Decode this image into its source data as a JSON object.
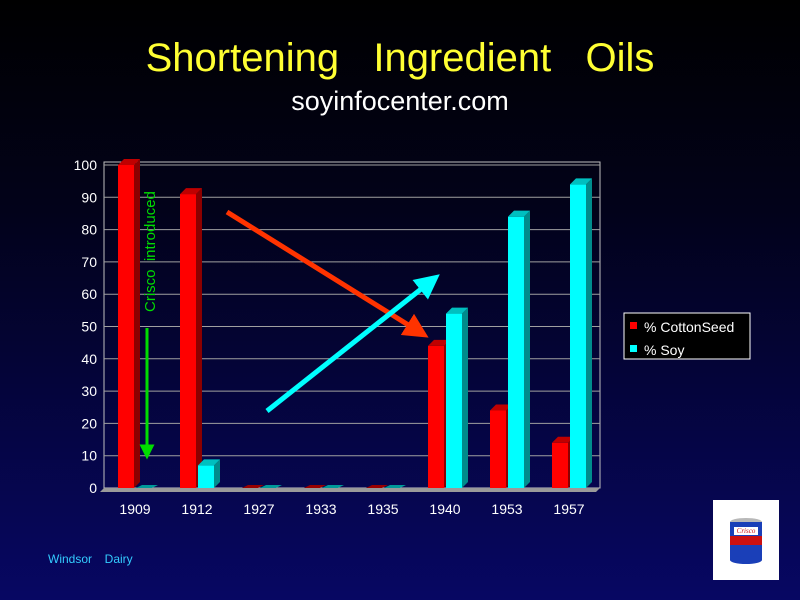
{
  "slide": {
    "title": "Shortening  Ingredient  Oils",
    "subtitle": "soyinfocenter.com",
    "footer": "Windsor  Dairy"
  },
  "chart_data": {
    "type": "bar",
    "categories": [
      "1909",
      "1912",
      "1927",
      "1933",
      "1935",
      "1940",
      "1953",
      "1957"
    ],
    "series": [
      {
        "name": "% CottonSeed",
        "color": "#ff0000",
        "values": [
          100,
          91,
          0,
          0,
          0,
          44,
          24,
          14
        ]
      },
      {
        "name": "% Soy",
        "color": "#00ffff",
        "values": [
          0,
          7,
          0,
          0,
          0,
          54,
          84,
          94
        ]
      }
    ],
    "ylim": [
      0,
      100
    ],
    "yticks": [
      0,
      10,
      20,
      30,
      40,
      50,
      60,
      70,
      80,
      90,
      100
    ],
    "grid": true,
    "legend_position": "right",
    "annotation": "Crisco  introduced"
  },
  "colors": {
    "title": "#ffff33",
    "cottonseed_trend_arrow": "#ff3300",
    "soy_trend_arrow": "#00ffff",
    "annotation_arrow": "#00dd00"
  },
  "logo": {
    "icon": "crisco-can-icon",
    "text": "Crisco"
  }
}
